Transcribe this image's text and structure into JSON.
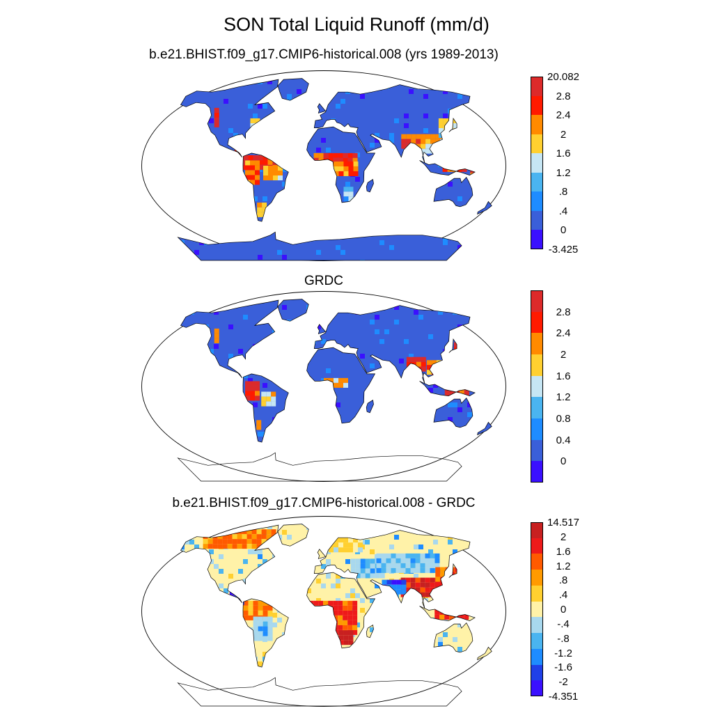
{
  "title": "SON Total Liquid Runoff (mm/d)",
  "panels": [
    {
      "subtitle": "b.e21.BHIST.f09_g17.CMIP6-historical.008 (yrs 1989-2013)",
      "ocean_color": "#ffffff",
      "land_base": "#3a5fd9",
      "antarctica_filled": true,
      "colorbar": {
        "colors": [
          "#3a10ff",
          "#3a5fd9",
          "#1e8cff",
          "#4ab4f0",
          "#c6e6f4",
          "#ffd030",
          "#ff8a00",
          "#ff1a00",
          "#dd2a2a"
        ],
        "labels": [
          "20.082",
          "2.8",
          "2.4",
          "2",
          "1.6",
          "1.2",
          ".8",
          ".4",
          "0",
          "-3.425"
        ],
        "label_mode": "edges"
      }
    },
    {
      "subtitle": "GRDC",
      "ocean_color": "#ffffff",
      "land_base": "#3a5fd9",
      "antarctica_filled": false,
      "colorbar": {
        "colors": [
          "#3a10ff",
          "#3a5fd9",
          "#1e8cff",
          "#4ab4f0",
          "#c6e6f4",
          "#ffd030",
          "#ff8a00",
          "#ff1a00",
          "#dd2a2a"
        ],
        "labels": [
          "2.8",
          "2.4",
          "2",
          "1.6",
          "1.2",
          "0.8",
          "0.4",
          "0"
        ],
        "label_mode": "inner"
      }
    },
    {
      "subtitle": "b.e21.BHIST.f09_g17.CMIP6-historical.008 - GRDC",
      "ocean_color": "#ffffff",
      "land_base": "#fff2a8",
      "antarctica_filled": false,
      "colorbar": {
        "colors": [
          "#3a10ff",
          "#2040e8",
          "#1e8cff",
          "#4ab4f0",
          "#a8d8ee",
          "#fff2a8",
          "#ffd030",
          "#ff9a00",
          "#ff5a00",
          "#ee1a1a",
          "#c82020"
        ],
        "labels": [
          "14.517",
          "2",
          "1.6",
          "1.2",
          ".8",
          ".4",
          "0",
          "-.4",
          "-.8",
          "-1.2",
          "-1.6",
          "-2",
          "-4.351"
        ],
        "label_mode": "edges"
      }
    }
  ]
}
